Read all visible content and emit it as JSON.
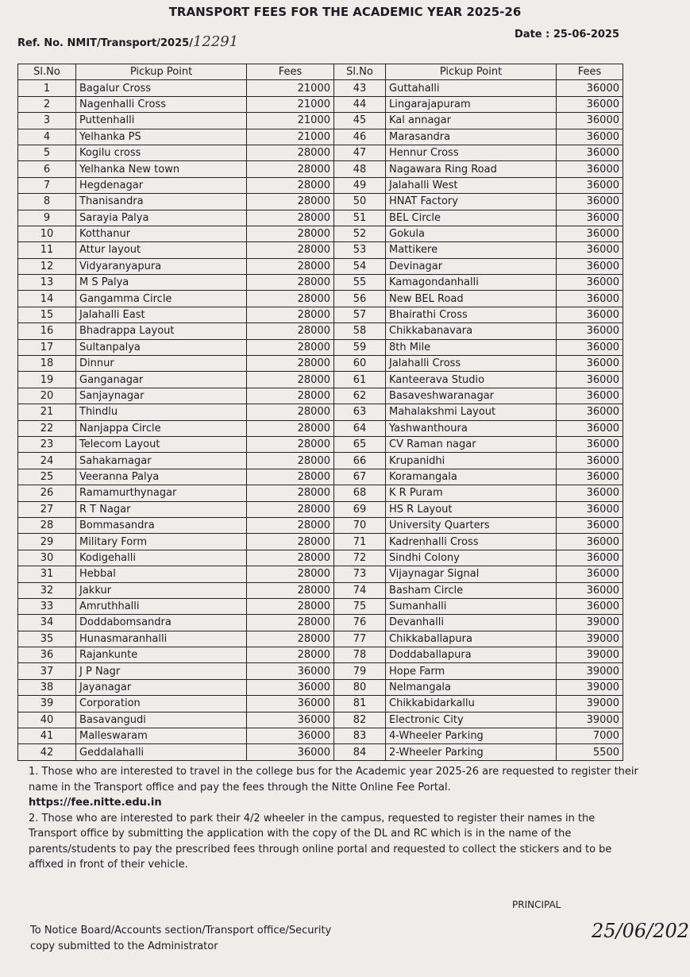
{
  "header": {
    "title": "TRANSPORT FEES FOR THE ACADEMIC YEAR 2025-26",
    "ref": "Ref. No. NMIT/Transport/2025/",
    "ref_number": "12291",
    "date": "Date : 25-06-2025"
  },
  "table": {
    "columns": [
      "Sl.No",
      "Pickup Point",
      "Fees",
      "Sl.No",
      "Pickup Point",
      "Fees"
    ],
    "rows": [
      [
        1,
        "Bagalur Cross",
        21000,
        43,
        "Guttahalli",
        36000
      ],
      [
        2,
        "Nagenhalli Cross",
        21000,
        44,
        "Lingarajapuram",
        36000
      ],
      [
        3,
        "Puttenhalli",
        21000,
        45,
        "Kal annagar",
        36000
      ],
      [
        4,
        "Yelhanka PS",
        21000,
        46,
        "Marasandra",
        36000
      ],
      [
        5,
        "Kogilu cross",
        28000,
        47,
        "Hennur Cross",
        36000
      ],
      [
        6,
        "Yelhanka New town",
        28000,
        48,
        "Nagawara Ring Road",
        36000
      ],
      [
        7,
        "Hegdenagar",
        28000,
        49,
        "Jalahalli West",
        36000
      ],
      [
        8,
        "Thanisandra",
        28000,
        50,
        "HNAT Factory",
        36000
      ],
      [
        9,
        "Sarayia Palya",
        28000,
        51,
        "BEL Circle",
        36000
      ],
      [
        10,
        "Kotthanur",
        28000,
        52,
        "Gokula",
        36000
      ],
      [
        11,
        "Attur layout",
        28000,
        53,
        "Mattikere",
        36000
      ],
      [
        12,
        "Vidyaranyapura",
        28000,
        54,
        "Devinagar",
        36000
      ],
      [
        13,
        "M S Palya",
        28000,
        55,
        "Kamagondanhalli",
        36000
      ],
      [
        14,
        "Gangamma Circle",
        28000,
        56,
        "New BEL Road",
        36000
      ],
      [
        15,
        "Jalahalli East",
        28000,
        57,
        "Bhairathi Cross",
        36000
      ],
      [
        16,
        "Bhadrappa Layout",
        28000,
        58,
        "Chikkabanavara",
        36000
      ],
      [
        17,
        "Sultanpalya",
        28000,
        59,
        "8th Mile",
        36000
      ],
      [
        18,
        "Dinnur",
        28000,
        60,
        "Jalahalli Cross",
        36000
      ],
      [
        19,
        "Ganganagar",
        28000,
        61,
        "Kanteerava Studio",
        36000
      ],
      [
        20,
        "Sanjaynagar",
        28000,
        62,
        "Basaveshwaranagar",
        36000
      ],
      [
        21,
        "Thindlu",
        28000,
        63,
        "Mahalakshmi Layout",
        36000
      ],
      [
        22,
        "Nanjappa Circle",
        28000,
        64,
        "Yashwanthoura",
        36000
      ],
      [
        23,
        "Telecom Layout",
        28000,
        65,
        "CV Raman nagar",
        36000
      ],
      [
        24,
        "Sahakarnagar",
        28000,
        66,
        "Krupanidhi",
        36000
      ],
      [
        25,
        "Veeranna Palya",
        28000,
        67,
        "Koramangala",
        36000
      ],
      [
        26,
        "Ramamurthynagar",
        28000,
        68,
        "K R Puram",
        36000
      ],
      [
        27,
        "R T Nagar",
        28000,
        69,
        "HS R Layout",
        36000
      ],
      [
        28,
        "Bommasandra",
        28000,
        70,
        "University Quarters",
        36000
      ],
      [
        29,
        "Military Form",
        28000,
        71,
        "Kadrenhalli Cross",
        36000
      ],
      [
        30,
        "Kodigehalli",
        28000,
        72,
        "Sindhi Colony",
        36000
      ],
      [
        31,
        "Hebbal",
        28000,
        73,
        "Vijaynagar Signal",
        36000
      ],
      [
        32,
        "Jakkur",
        28000,
        74,
        "Basham Circle",
        36000
      ],
      [
        33,
        "Amruthhalli",
        28000,
        75,
        "Sumanhalli",
        36000
      ],
      [
        34,
        "Doddabomsandra",
        28000,
        76,
        "Devanhalli",
        39000
      ],
      [
        35,
        "Hunasmaranhalli",
        28000,
        77,
        "Chikkaballapura",
        39000
      ],
      [
        36,
        "Rajankunte",
        28000,
        78,
        "Doddaballapura",
        39000
      ],
      [
        37,
        "J P Nagr",
        36000,
        79,
        "Hope Farm",
        39000
      ],
      [
        38,
        "Jayanagar",
        36000,
        80,
        "Nelmangala",
        39000
      ],
      [
        39,
        "Corporation",
        36000,
        81,
        "Chikkabidarkallu",
        39000
      ],
      [
        40,
        "Basavangudi",
        36000,
        82,
        "Electronic City",
        39000
      ],
      [
        41,
        "Malleswaram",
        36000,
        83,
        "4-Wheeler Parking",
        7000
      ],
      [
        42,
        "Geddalahalli",
        36000,
        84,
        "2-Wheeler Parking",
        5500
      ]
    ]
  },
  "notes": {
    "note1": "1. Those who are interested to travel in the college bus for the Academic year 2025-26 are requested to register their name in the Transport office and pay the fees through the Nitte Online Fee Portal.",
    "url": "https://fee.nitte.edu.in",
    "note2": "2. Those who are interested to park their 4/2 wheeler in the campus, requested to register their names in the Transport office by submitting the application with the copy of the DL and RC which is in the name of the parents/students to pay the prescribed fees through online portal and requested to collect the stickers and to be affixed in front of their vehicle."
  },
  "signature": {
    "role": "PRINCIPAL",
    "date": "25/06/202"
  },
  "footer": {
    "line1": "To Notice Board/Accounts section/Transport office/Security",
    "line2": "copy submitted to the Administrator"
  }
}
